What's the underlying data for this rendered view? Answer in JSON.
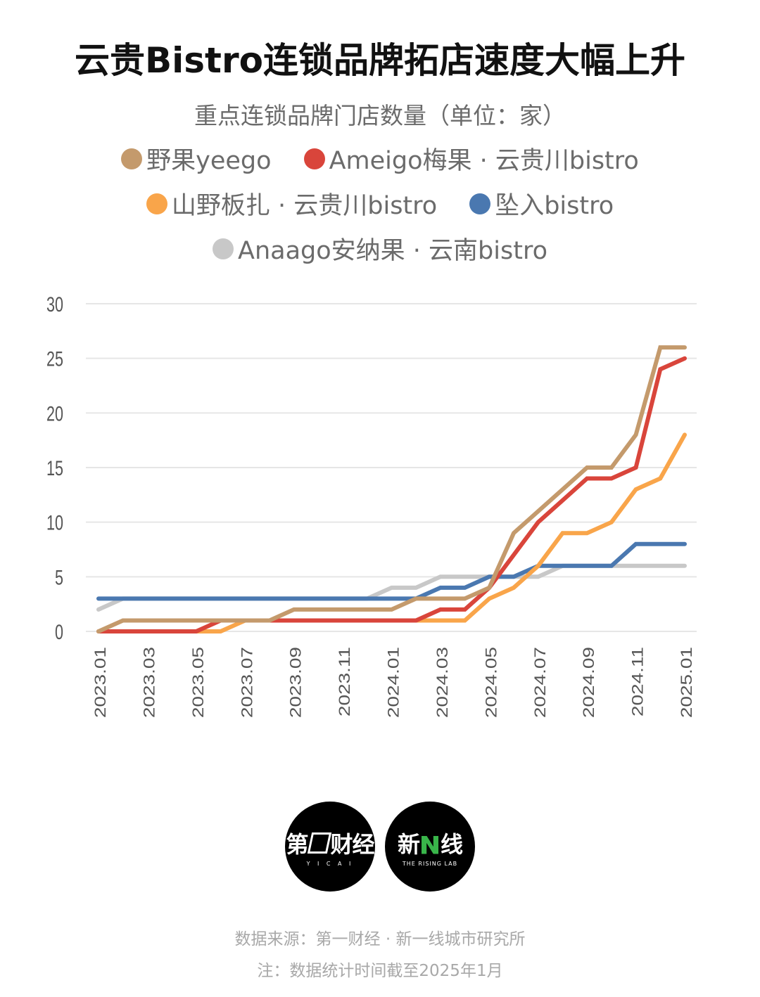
{
  "title": "云贵Bistro连锁品牌拓店速度大幅上升",
  "subtitle": "重点连锁品牌门店数量（单位：家）",
  "legend": [
    {
      "label": "野果yeego",
      "color": "#c49a6c"
    },
    {
      "label": "Ameigo梅果 · 云贵川bistro",
      "color": "#d9453b"
    },
    {
      "label": "山野板扎 · 云贵川bistro",
      "color": "#f9a54a"
    },
    {
      "label": "坠入bistro",
      "color": "#4a78b0"
    },
    {
      "label": "Anaago安纳果 · 云南bistro",
      "color": "#c8c8c8"
    }
  ],
  "logos": {
    "yicai": {
      "main_a": "第",
      "main_b": "财经",
      "sub": "Y I C A I"
    },
    "rising_lab": {
      "main_a": "新",
      "main_b": "线",
      "sub": "THE RISING LAB"
    }
  },
  "footer": {
    "source": "数据来源：第一财经 · 新一线城市研究所",
    "note": "注：数据统计时间截至2025年1月"
  },
  "chart_data": {
    "type": "line",
    "title": "云贵Bistro连锁品牌拓店速度大幅上升",
    "subtitle": "重点连锁品牌门店数量（单位：家）",
    "xlabel": "",
    "ylabel": "",
    "ylim": [
      0,
      30
    ],
    "yticks": [
      0,
      5,
      10,
      15,
      20,
      25,
      30
    ],
    "grid": true,
    "legend_position": "top",
    "x": [
      "2023.01",
      "2023.02",
      "2023.03",
      "2023.04",
      "2023.05",
      "2023.06",
      "2023.07",
      "2023.08",
      "2023.09",
      "2023.10",
      "2023.11",
      "2023.12",
      "2024.01",
      "2024.02",
      "2024.03",
      "2024.04",
      "2024.05",
      "2024.06",
      "2024.07",
      "2024.08",
      "2024.09",
      "2024.10",
      "2024.11",
      "2024.12",
      "2025.01"
    ],
    "xtick_labels": [
      "2023.01",
      "2023.03",
      "2023.05",
      "2023.07",
      "2023.09",
      "2023.11",
      "2024.01",
      "2024.03",
      "2024.05",
      "2024.07",
      "2024.09",
      "2024.11",
      "2025.01"
    ],
    "series": [
      {
        "name": "野果yeego",
        "color": "#c49a6c",
        "values": [
          0,
          1,
          1,
          1,
          1,
          1,
          1,
          1,
          2,
          2,
          2,
          2,
          2,
          3,
          3,
          3,
          4,
          9,
          11,
          13,
          15,
          15,
          18,
          26,
          26
        ]
      },
      {
        "name": "Ameigo梅果 · 云贵川bistro",
        "color": "#d9453b",
        "values": [
          0,
          0,
          0,
          0,
          0,
          1,
          1,
          1,
          1,
          1,
          1,
          1,
          1,
          1,
          2,
          2,
          4,
          7,
          10,
          12,
          14,
          14,
          15,
          24,
          25
        ]
      },
      {
        "name": "山野板扎 · 云贵川bistro",
        "color": "#f9a54a",
        "values": [
          0,
          0,
          0,
          0,
          0,
          0,
          1,
          1,
          1,
          1,
          1,
          1,
          1,
          1,
          1,
          1,
          3,
          4,
          6,
          9,
          9,
          10,
          13,
          14,
          18
        ]
      },
      {
        "name": "坠入bistro",
        "color": "#4a78b0",
        "values": [
          3,
          3,
          3,
          3,
          3,
          3,
          3,
          3,
          3,
          3,
          3,
          3,
          3,
          3,
          4,
          4,
          5,
          5,
          6,
          6,
          6,
          6,
          8,
          8,
          8
        ]
      },
      {
        "name": "Anaago安纳果 · 云南bistro",
        "color": "#c8c8c8",
        "values": [
          2,
          3,
          3,
          3,
          3,
          3,
          3,
          3,
          3,
          3,
          3,
          3,
          4,
          4,
          5,
          5,
          5,
          5,
          5,
          6,
          6,
          6,
          6,
          6,
          6
        ]
      }
    ]
  }
}
